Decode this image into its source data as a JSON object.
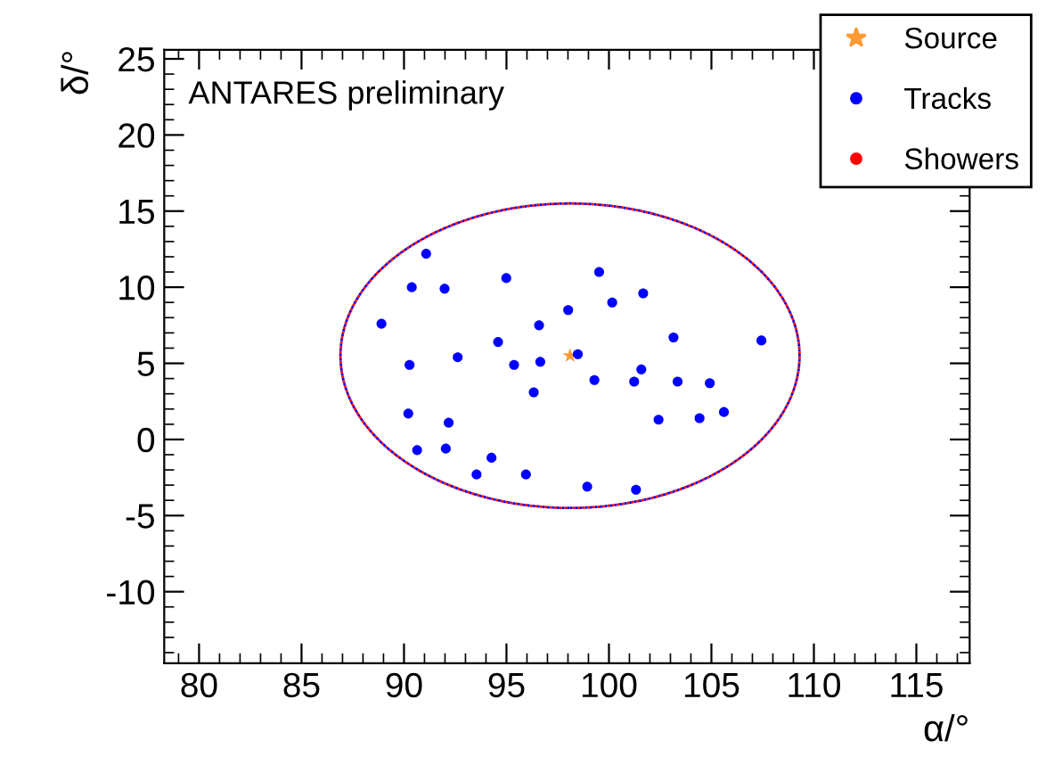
{
  "chart_data": {
    "type": "scatter",
    "xlabel": "α/°",
    "ylabel": "δ/°",
    "annotations": [
      "ANTARES preliminary"
    ],
    "xlim": [
      78.3,
      117.6
    ],
    "ylim": [
      -14.7,
      25.6
    ],
    "xticks": [
      80,
      85,
      90,
      95,
      100,
      105,
      110,
      115
    ],
    "yticks": [
      -10,
      -5,
      0,
      5,
      10,
      15,
      20,
      25
    ],
    "grid": false,
    "legend": "top right",
    "series": [
      {
        "name": "Source",
        "marker": "star",
        "color": "#ff9933",
        "x": [
          98.1
        ],
        "values": [
          5.5
        ]
      },
      {
        "name": "Tracks",
        "marker": "circle",
        "color": "#0000ff",
        "x": [
          91.08,
          94.99,
          99.52,
          90.38,
          91.98,
          101.67,
          100.16,
          88.9,
          98.01,
          96.59,
          94.59,
          103.15,
          107.44,
          90.27,
          92.62,
          95.37,
          96.65,
          98.48,
          99.29,
          101.23,
          101.58,
          103.35,
          104.92,
          96.33,
          90.21,
          92.18,
          102.42,
          104.42,
          105.61,
          90.64,
          92.04,
          94.27,
          93.54,
          95.95,
          98.94,
          101.32
        ],
        "values": [
          12.2,
          10.6,
          11.0,
          10.0,
          9.9,
          9.6,
          9.0,
          7.6,
          8.5,
          7.5,
          6.4,
          6.7,
          6.5,
          4.9,
          5.4,
          4.9,
          5.1,
          5.6,
          3.9,
          3.8,
          4.6,
          3.8,
          3.7,
          3.1,
          1.7,
          1.1,
          1.3,
          1.4,
          1.8,
          -0.7,
          -0.6,
          -1.2,
          -2.3,
          -2.3,
          -3.1,
          -3.3
        ]
      },
      {
        "name": "Showers",
        "marker": "circle",
        "color": "#ff0000"
      }
    ]
  }
}
